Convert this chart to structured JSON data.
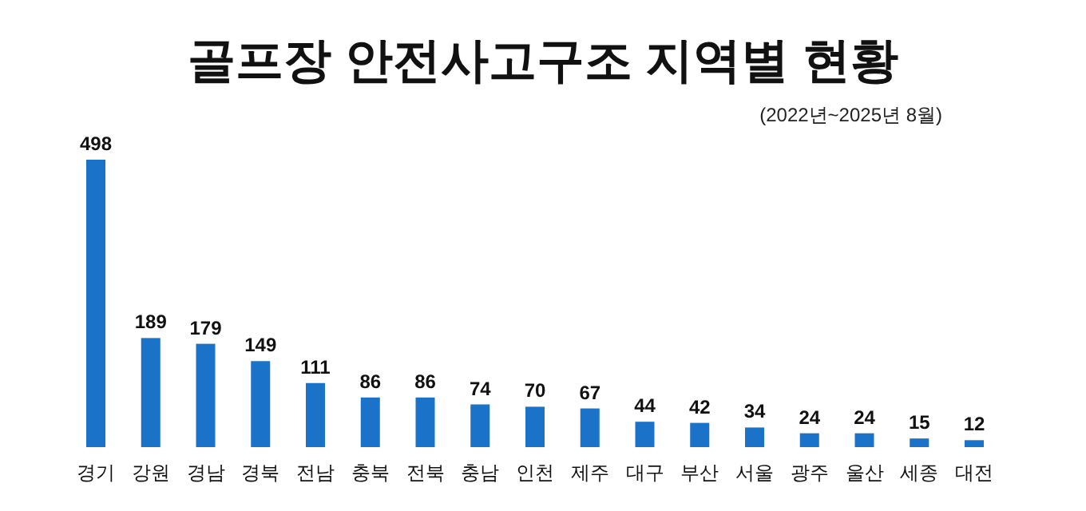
{
  "chart_data": {
    "type": "bar",
    "title": "골프장 안전사고구조 지역별 현황",
    "subtitle": "(2022년~2025년 8월)",
    "categories": [
      "경기",
      "강원",
      "경남",
      "경북",
      "전남",
      "충북",
      "전북",
      "충남",
      "인천",
      "제주",
      "대구",
      "부산",
      "서울",
      "광주",
      "울산",
      "세종",
      "대전"
    ],
    "values": [
      498,
      189,
      179,
      149,
      111,
      86,
      86,
      74,
      70,
      67,
      44,
      42,
      34,
      24,
      24,
      15,
      12
    ],
    "color": "#1a72c9",
    "data_labels": true
  }
}
